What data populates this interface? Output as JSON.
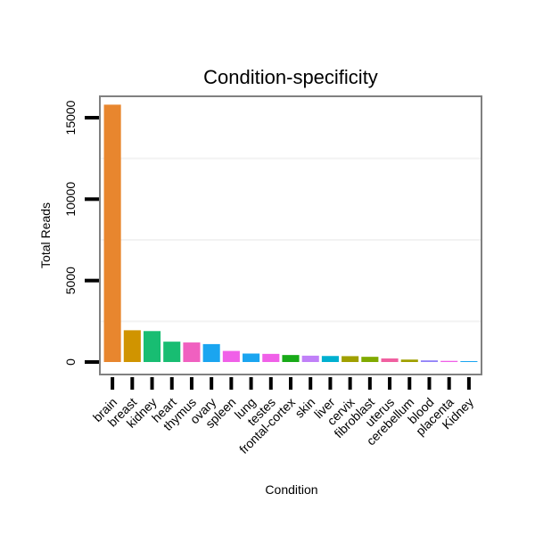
{
  "chart_data": {
    "type": "bar",
    "title": "Condition-specificity",
    "xlabel": "Condition",
    "ylabel": "Total Reads",
    "ylim": [
      0,
      16000
    ],
    "yticks": [
      0,
      5000,
      10000,
      15000
    ],
    "grid": true,
    "categories": [
      "brain",
      "breast",
      "kidney",
      "heart",
      "thymus",
      "ovary",
      "spleen",
      "lung",
      "testes",
      "frontal-cortex",
      "skin",
      "liver",
      "cervix",
      "fibroblast",
      "uterus",
      "cerebellum",
      "blood",
      "placenta",
      "Kidney"
    ],
    "values": [
      15800,
      1950,
      1900,
      1250,
      1200,
      1100,
      680,
      520,
      500,
      430,
      390,
      370,
      360,
      320,
      220,
      150,
      100,
      70,
      55
    ],
    "colors": [
      "#e8862e",
      "#d09400",
      "#18bd72",
      "#18bd72",
      "#f060c0",
      "#1aa5f0",
      "#f060e8",
      "#1aa5f0",
      "#f060e8",
      "#18aa18",
      "#c080f8",
      "#00b0d0",
      "#a0a000",
      "#80aa00",
      "#f060a0",
      "#a0a000",
      "#9080f8",
      "#f060e8",
      "#1aa5f0"
    ]
  }
}
